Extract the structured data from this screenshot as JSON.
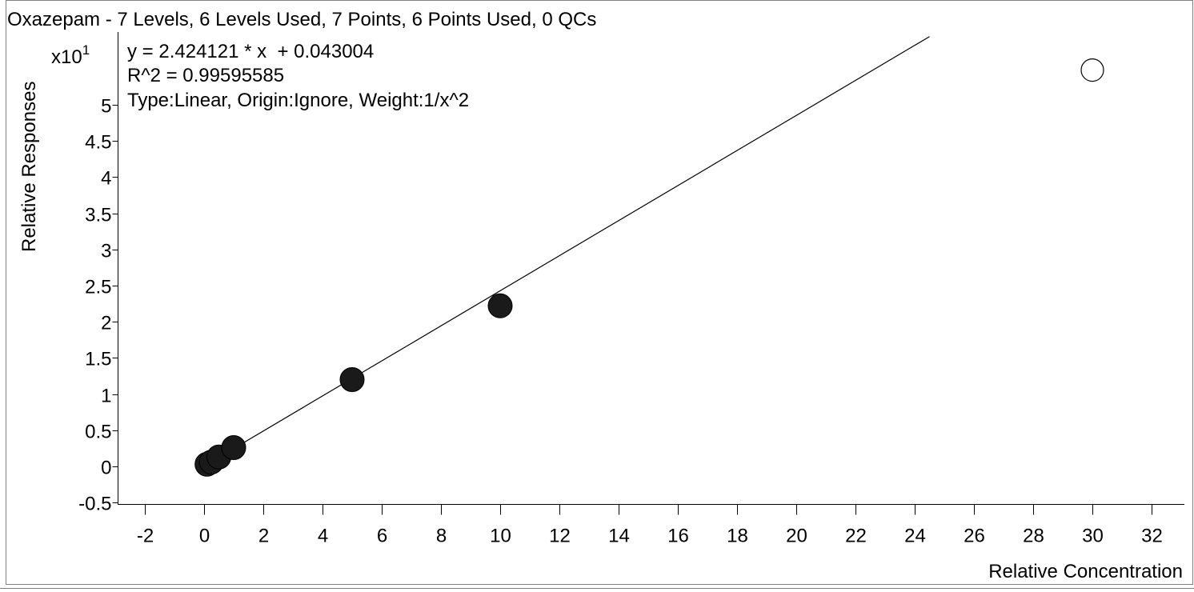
{
  "chart_data": {
    "type": "scatter",
    "title": "Oxazepam - 7 Levels, 6 Levels Used, 7 Points, 6 Points Used, 0 QCs",
    "xlabel": "Relative Concentration",
    "ylabel": "Relative Responses",
    "y_multiplier_label": "x10",
    "y_multiplier_exponent": "1",
    "equation": "y = 2.424121 * x  + 0.043004",
    "r_squared": "R^2 = 0.99595585",
    "fit_info": "Type:Linear, Origin:Ignore, Weight:1/x^2",
    "xlim": [
      -3,
      33
    ],
    "ylim": [
      -0.5,
      5.8
    ],
    "x_ticks": [
      -2,
      0,
      2,
      4,
      6,
      8,
      10,
      12,
      14,
      16,
      18,
      20,
      22,
      24,
      26,
      28,
      30,
      32
    ],
    "x_tick_labels": [
      "-2",
      "0",
      "2",
      "4",
      "6",
      "8",
      "10",
      "12",
      "14",
      "16",
      "18",
      "20",
      "22",
      "24",
      "26",
      "28",
      "30",
      "32"
    ],
    "y_ticks": [
      -0.5,
      0,
      0.5,
      1,
      1.5,
      2,
      2.5,
      3,
      3.5,
      4,
      4.5,
      5
    ],
    "y_tick_labels": [
      "-0.5",
      "0",
      "0.5",
      "1",
      "1.5",
      "2",
      "2.5",
      "3",
      "3.5",
      "4",
      "4.5",
      "5"
    ],
    "fit_line": {
      "slope": 0.2424121,
      "intercept": 0.0043004,
      "x_start": 0,
      "x_end": 24.5
    },
    "series": [
      {
        "used": true,
        "points": [
          {
            "x": 0.1,
            "y": 0.03
          },
          {
            "x": 0.25,
            "y": 0.06
          },
          {
            "x": 0.5,
            "y": 0.13
          },
          {
            "x": 1,
            "y": 0.26
          },
          {
            "x": 5,
            "y": 1.2
          },
          {
            "x": 10,
            "y": 2.22
          }
        ]
      },
      {
        "used": false,
        "points": [
          {
            "x": 30,
            "y": 5.48
          }
        ]
      }
    ],
    "grid": false,
    "colors": {
      "used_point": "#1a1a1a",
      "excluded_point": "#ffffff",
      "line": "#000000",
      "frame": "#7f7f7f"
    }
  }
}
